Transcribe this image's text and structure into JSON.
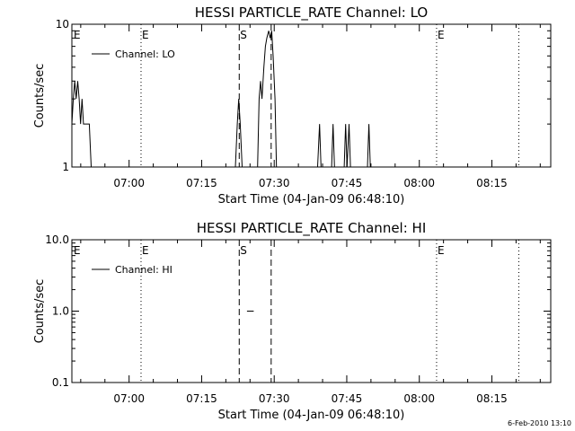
{
  "footer": "6-Feb-2010 13:10",
  "colors": {
    "background": "#ffffff",
    "foreground": "#000000"
  },
  "chart_data": [
    {
      "type": "line",
      "title": "HESSI PARTICLE_RATE Channel: LO",
      "xlabel": "Start Time (04-Jan-09 06:48:10)",
      "ylabel": "Counts/sec",
      "x_units": "minutes from 06:48:10",
      "xlim": [
        0,
        99
      ],
      "ylim": [
        1,
        10
      ],
      "y_scale": "log",
      "x_ticks": [
        {
          "label": "07:00",
          "value": 11.83
        },
        {
          "label": "07:15",
          "value": 26.83
        },
        {
          "label": "07:30",
          "value": 41.83
        },
        {
          "label": "07:45",
          "value": 56.83
        },
        {
          "label": "08:00",
          "value": 71.83
        },
        {
          "label": "08:15",
          "value": 86.83
        }
      ],
      "y_ticks": [
        {
          "label": "1",
          "value": 1
        },
        {
          "label": "10",
          "value": 10
        }
      ],
      "grid": false,
      "legend": {
        "position": "top-left",
        "entries": [
          "Channel: LO"
        ]
      },
      "series": [
        {
          "name": "Channel: LO",
          "points": [
            [
              0.0,
              2.0
            ],
            [
              0.3,
              3.0
            ],
            [
              0.6,
              4.0
            ],
            [
              0.9,
              3.0
            ],
            [
              1.2,
              4.0
            ],
            [
              1.5,
              3.0
            ],
            [
              1.8,
              2.0
            ],
            [
              2.1,
              3.0
            ],
            [
              2.4,
              2.0
            ],
            [
              3.0,
              2.0
            ],
            [
              3.6,
              2.0
            ],
            [
              4.0,
              1.0
            ],
            [
              33.8,
              1.0
            ],
            [
              34.2,
              2.0
            ],
            [
              34.5,
              3.0
            ],
            [
              34.8,
              2.0
            ],
            [
              35.2,
              1.0
            ],
            [
              38.4,
              1.0
            ],
            [
              38.7,
              3.0
            ],
            [
              39.0,
              4.0
            ],
            [
              39.3,
              3.0
            ],
            [
              39.7,
              5.0
            ],
            [
              40.0,
              7.0
            ],
            [
              40.3,
              8.0
            ],
            [
              40.7,
              9.0
            ],
            [
              41.0,
              8.0
            ],
            [
              41.3,
              9.0
            ],
            [
              41.6,
              6.0
            ],
            [
              42.0,
              3.0
            ],
            [
              42.3,
              1.0
            ],
            [
              50.8,
              1.0
            ],
            [
              51.2,
              2.0
            ],
            [
              51.5,
              1.0
            ],
            [
              53.7,
              1.0
            ],
            [
              54.0,
              2.0
            ],
            [
              54.3,
              1.0
            ],
            [
              56.3,
              1.0
            ],
            [
              56.6,
              2.0
            ],
            [
              56.9,
              1.0
            ],
            [
              57.3,
              2.0
            ],
            [
              57.6,
              1.0
            ],
            [
              61.1,
              1.0
            ],
            [
              61.4,
              2.0
            ],
            [
              61.7,
              1.0
            ]
          ]
        }
      ],
      "vlines": [
        {
          "x": 14.3,
          "style": "dotted",
          "label": "E"
        },
        {
          "x": 34.6,
          "style": "dashed",
          "label": "S"
        },
        {
          "x": 41.2,
          "style": "dashed",
          "label": ""
        },
        {
          "x": 75.4,
          "style": "dotted",
          "label": "E"
        },
        {
          "x": 92.4,
          "style": "dotted",
          "label": ""
        }
      ]
    },
    {
      "type": "line",
      "title": "HESSI PARTICLE_RATE Channel: HI",
      "xlabel": "Start Time (04-Jan-09 06:48:10)",
      "ylabel": "Counts/sec",
      "x_units": "minutes from 06:48:10",
      "xlim": [
        0,
        99
      ],
      "ylim": [
        0.1,
        10
      ],
      "y_scale": "log",
      "x_ticks": [
        {
          "label": "07:00",
          "value": 11.83
        },
        {
          "label": "07:15",
          "value": 26.83
        },
        {
          "label": "07:30",
          "value": 41.83
        },
        {
          "label": "07:45",
          "value": 56.83
        },
        {
          "label": "08:00",
          "value": 71.83
        },
        {
          "label": "08:15",
          "value": 86.83
        }
      ],
      "y_ticks": [
        {
          "label": "0.1",
          "value": 0.1
        },
        {
          "label": "1.0",
          "value": 1.0
        },
        {
          "label": "10.0",
          "value": 10.0
        }
      ],
      "grid": false,
      "legend": {
        "position": "top-left",
        "entries": [
          "Channel: HI"
        ]
      },
      "series": [
        {
          "name": "Channel: HI",
          "points": [
            [
              36.2,
              1.0
            ],
            [
              37.6,
              1.0
            ]
          ]
        }
      ],
      "vlines": [
        {
          "x": 14.3,
          "style": "dotted",
          "label": "E"
        },
        {
          "x": 34.6,
          "style": "dashed",
          "label": "S"
        },
        {
          "x": 41.2,
          "style": "dashed",
          "label": ""
        },
        {
          "x": 75.4,
          "style": "dotted",
          "label": "E"
        },
        {
          "x": 92.4,
          "style": "dotted",
          "label": ""
        }
      ]
    }
  ]
}
